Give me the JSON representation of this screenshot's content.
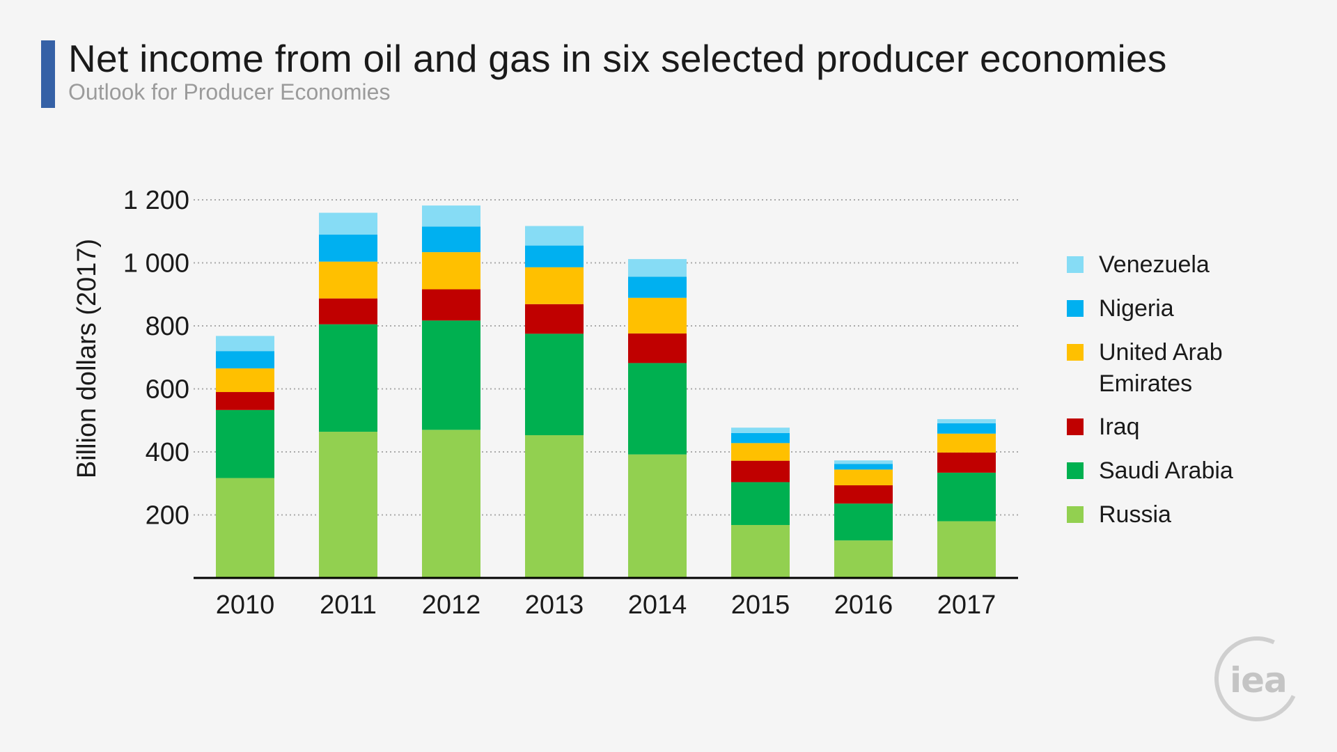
{
  "header": {
    "title": "Net income from oil and gas in six selected producer economies",
    "subtitle": "Outlook for Producer Economies"
  },
  "logo": {
    "text": "iea"
  },
  "chart_data": {
    "type": "bar",
    "stacked": true,
    "categories": [
      "2010",
      "2011",
      "2012",
      "2013",
      "2014",
      "2015",
      "2016",
      "2017"
    ],
    "ylabel": "Billion dollars (2017)",
    "ylim": [
      0,
      1200
    ],
    "yticks": [
      200,
      400,
      600,
      800,
      1000,
      1200
    ],
    "ytick_labels": [
      "200",
      "400",
      "600",
      "800",
      "1 000",
      "1 200"
    ],
    "grid": true,
    "legend_position": "right",
    "series": [
      {
        "name": "Russia",
        "color": "#92d050",
        "values": [
          317,
          464,
          470,
          453,
          392,
          168,
          119,
          180
        ]
      },
      {
        "name": "Saudi Arabia",
        "color": "#00b050",
        "values": [
          216,
          341,
          347,
          322,
          290,
          136,
          117,
          154
        ]
      },
      {
        "name": "Iraq",
        "color": "#c00000",
        "values": [
          57,
          82,
          99,
          94,
          94,
          68,
          58,
          64
        ]
      },
      {
        "name": "United Arab Emirates",
        "color": "#ffc000",
        "values": [
          75,
          117,
          118,
          117,
          113,
          56,
          50,
          60
        ]
      },
      {
        "name": "Nigeria",
        "color": "#00b0f0",
        "values": [
          55,
          86,
          81,
          69,
          67,
          32,
          18,
          33
        ]
      },
      {
        "name": "Venezuela",
        "color": "#86dcf5",
        "values": [
          48,
          69,
          67,
          62,
          56,
          17,
          11,
          13
        ]
      }
    ]
  },
  "legend": {
    "items": [
      {
        "label": "Venezuela",
        "color": "#86dcf5"
      },
      {
        "label": "Nigeria",
        "color": "#00b0f0"
      },
      {
        "label": "United Arab Emirates",
        "color": "#ffc000"
      },
      {
        "label": "Iraq",
        "color": "#c00000"
      },
      {
        "label": "Saudi Arabia",
        "color": "#00b050"
      },
      {
        "label": "Russia",
        "color": "#92d050"
      }
    ]
  }
}
